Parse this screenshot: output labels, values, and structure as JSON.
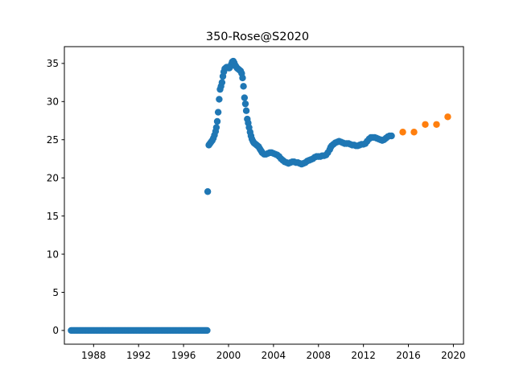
{
  "chart_data": {
    "type": "scatter",
    "title": "350-Rose@S2020",
    "xlabel": "",
    "ylabel": "",
    "xlim": [
      1985.4,
      2020.9
    ],
    "ylim": [
      -1.8,
      37.2
    ],
    "x_ticks": [
      1988,
      1992,
      1996,
      2000,
      2004,
      2008,
      2012,
      2016,
      2020
    ],
    "y_ticks": [
      0,
      5,
      10,
      15,
      20,
      25,
      30,
      35
    ],
    "grid": false,
    "legend": "none",
    "series": [
      {
        "color": "#1f77b4",
        "points": [
          [
            1986.0,
            0
          ],
          [
            1986.1,
            0
          ],
          [
            1986.2,
            0
          ],
          [
            1986.3,
            0
          ],
          [
            1986.4,
            0
          ],
          [
            1986.5,
            0
          ],
          [
            1986.6,
            0
          ],
          [
            1986.7,
            0
          ],
          [
            1986.8,
            0
          ],
          [
            1986.9,
            0
          ],
          [
            1987.0,
            0
          ],
          [
            1987.1,
            0
          ],
          [
            1987.2,
            0
          ],
          [
            1987.3,
            0
          ],
          [
            1987.4,
            0
          ],
          [
            1987.5,
            0
          ],
          [
            1987.6,
            0
          ],
          [
            1987.7,
            0
          ],
          [
            1987.8,
            0
          ],
          [
            1987.9,
            0
          ],
          [
            1988.0,
            0
          ],
          [
            1988.1,
            0
          ],
          [
            1988.2,
            0
          ],
          [
            1988.3,
            0
          ],
          [
            1988.4,
            0
          ],
          [
            1988.5,
            0
          ],
          [
            1988.6,
            0
          ],
          [
            1988.7,
            0
          ],
          [
            1988.8,
            0
          ],
          [
            1988.9,
            0
          ],
          [
            1989.0,
            0
          ],
          [
            1989.1,
            0
          ],
          [
            1989.2,
            0
          ],
          [
            1989.3,
            0
          ],
          [
            1989.4,
            0
          ],
          [
            1989.5,
            0
          ],
          [
            1989.6,
            0
          ],
          [
            1989.7,
            0
          ],
          [
            1989.8,
            0
          ],
          [
            1989.9,
            0
          ],
          [
            1990.0,
            0
          ],
          [
            1990.1,
            0
          ],
          [
            1990.2,
            0
          ],
          [
            1990.3,
            0
          ],
          [
            1990.4,
            0
          ],
          [
            1990.5,
            0
          ],
          [
            1990.6,
            0
          ],
          [
            1990.7,
            0
          ],
          [
            1990.8,
            0
          ],
          [
            1990.9,
            0
          ],
          [
            1991.0,
            0
          ],
          [
            1991.1,
            0
          ],
          [
            1991.2,
            0
          ],
          [
            1991.3,
            0
          ],
          [
            1991.4,
            0
          ],
          [
            1991.5,
            0
          ],
          [
            1991.6,
            0
          ],
          [
            1991.7,
            0
          ],
          [
            1991.8,
            0
          ],
          [
            1991.9,
            0
          ],
          [
            1992.0,
            0
          ],
          [
            1992.1,
            0
          ],
          [
            1992.2,
            0
          ],
          [
            1992.3,
            0
          ],
          [
            1992.4,
            0
          ],
          [
            1992.5,
            0
          ],
          [
            1992.6,
            0
          ],
          [
            1992.7,
            0
          ],
          [
            1992.8,
            0
          ],
          [
            1992.9,
            0
          ],
          [
            1993.0,
            0
          ],
          [
            1993.1,
            0
          ],
          [
            1993.2,
            0
          ],
          [
            1993.3,
            0
          ],
          [
            1993.4,
            0
          ],
          [
            1993.5,
            0
          ],
          [
            1993.6,
            0
          ],
          [
            1993.7,
            0
          ],
          [
            1993.8,
            0
          ],
          [
            1993.9,
            0
          ],
          [
            1994.0,
            0
          ],
          [
            1994.1,
            0
          ],
          [
            1994.2,
            0
          ],
          [
            1994.3,
            0
          ],
          [
            1994.4,
            0
          ],
          [
            1994.5,
            0
          ],
          [
            1994.6,
            0
          ],
          [
            1994.7,
            0
          ],
          [
            1994.8,
            0
          ],
          [
            1994.9,
            0
          ],
          [
            1995.0,
            0
          ],
          [
            1995.1,
            0
          ],
          [
            1995.2,
            0
          ],
          [
            1995.3,
            0
          ],
          [
            1995.4,
            0
          ],
          [
            1995.5,
            0
          ],
          [
            1995.6,
            0
          ],
          [
            1995.7,
            0
          ],
          [
            1995.8,
            0
          ],
          [
            1995.9,
            0
          ],
          [
            1996.0,
            0
          ],
          [
            1996.1,
            0
          ],
          [
            1996.2,
            0
          ],
          [
            1996.3,
            0
          ],
          [
            1996.4,
            0
          ],
          [
            1996.5,
            0
          ],
          [
            1996.6,
            0
          ],
          [
            1996.7,
            0
          ],
          [
            1996.8,
            0
          ],
          [
            1996.9,
            0
          ],
          [
            1997.0,
            0
          ],
          [
            1997.1,
            0
          ],
          [
            1997.2,
            0
          ],
          [
            1997.3,
            0
          ],
          [
            1997.4,
            0
          ],
          [
            1997.5,
            0
          ],
          [
            1997.6,
            0
          ],
          [
            1997.7,
            0
          ],
          [
            1997.8,
            0
          ],
          [
            1997.9,
            0
          ],
          [
            1998.0,
            0
          ],
          [
            1998.1,
            0
          ],
          [
            1998.15,
            18.2
          ],
          [
            1998.25,
            24.3
          ],
          [
            1998.35,
            24.5
          ],
          [
            1998.45,
            24.7
          ],
          [
            1998.55,
            24.9
          ],
          [
            1998.65,
            25.2
          ],
          [
            1998.75,
            25.6
          ],
          [
            1998.85,
            26.1
          ],
          [
            1998.92,
            26.6
          ],
          [
            1999.0,
            27.4
          ],
          [
            1999.08,
            28.6
          ],
          [
            1999.17,
            30.3
          ],
          [
            1999.25,
            31.6
          ],
          [
            1999.33,
            32.0
          ],
          [
            1999.42,
            32.5
          ],
          [
            1999.5,
            33.3
          ],
          [
            1999.58,
            33.9
          ],
          [
            1999.67,
            34.3
          ],
          [
            1999.75,
            34.4
          ],
          [
            1999.83,
            34.5
          ],
          [
            1999.92,
            34.5
          ],
          [
            2000.0,
            34.4
          ],
          [
            2000.08,
            34.4
          ],
          [
            2000.17,
            34.6
          ],
          [
            2000.25,
            34.9
          ],
          [
            2000.33,
            35.2
          ],
          [
            2000.42,
            35.3
          ],
          [
            2000.5,
            35.1
          ],
          [
            2000.58,
            34.8
          ],
          [
            2000.67,
            34.6
          ],
          [
            2000.75,
            34.4
          ],
          [
            2000.83,
            34.3
          ],
          [
            2000.92,
            34.2
          ],
          [
            2001.0,
            34.1
          ],
          [
            2001.08,
            34.0
          ],
          [
            2001.17,
            33.7
          ],
          [
            2001.25,
            33.1
          ],
          [
            2001.33,
            32.0
          ],
          [
            2001.42,
            30.5
          ],
          [
            2001.5,
            29.7
          ],
          [
            2001.58,
            28.8
          ],
          [
            2001.67,
            27.7
          ],
          [
            2001.75,
            27.2
          ],
          [
            2001.83,
            26.6
          ],
          [
            2001.92,
            26.0
          ],
          [
            2002.0,
            25.5
          ],
          [
            2002.08,
            25.1
          ],
          [
            2002.17,
            24.8
          ],
          [
            2002.25,
            24.6
          ],
          [
            2002.33,
            24.5
          ],
          [
            2002.42,
            24.4
          ],
          [
            2002.5,
            24.3
          ],
          [
            2002.58,
            24.2
          ],
          [
            2002.67,
            24.1
          ],
          [
            2002.75,
            23.9
          ],
          [
            2002.83,
            23.7
          ],
          [
            2002.92,
            23.5
          ],
          [
            2003.0,
            23.3
          ],
          [
            2003.17,
            23.1
          ],
          [
            2003.33,
            23.1
          ],
          [
            2003.5,
            23.2
          ],
          [
            2003.67,
            23.3
          ],
          [
            2003.83,
            23.3
          ],
          [
            2004.0,
            23.2
          ],
          [
            2004.17,
            23.1
          ],
          [
            2004.33,
            23.0
          ],
          [
            2004.5,
            22.8
          ],
          [
            2004.67,
            22.5
          ],
          [
            2004.83,
            22.3
          ],
          [
            2005.0,
            22.1
          ],
          [
            2005.17,
            22.0
          ],
          [
            2005.33,
            21.9
          ],
          [
            2005.5,
            22.0
          ],
          [
            2005.67,
            22.1
          ],
          [
            2005.83,
            22.1
          ],
          [
            2006.0,
            22.0
          ],
          [
            2006.17,
            22.0
          ],
          [
            2006.33,
            21.9
          ],
          [
            2006.5,
            21.8
          ],
          [
            2006.67,
            21.9
          ],
          [
            2006.83,
            22.0
          ],
          [
            2007.0,
            22.2
          ],
          [
            2007.17,
            22.3
          ],
          [
            2007.33,
            22.4
          ],
          [
            2007.5,
            22.5
          ],
          [
            2007.67,
            22.7
          ],
          [
            2007.83,
            22.8
          ],
          [
            2008.0,
            22.8
          ],
          [
            2008.17,
            22.8
          ],
          [
            2008.33,
            22.9
          ],
          [
            2008.5,
            22.9
          ],
          [
            2008.67,
            23.0
          ],
          [
            2008.83,
            23.3
          ],
          [
            2009.0,
            23.7
          ],
          [
            2009.08,
            24.0
          ],
          [
            2009.17,
            24.2
          ],
          [
            2009.33,
            24.4
          ],
          [
            2009.5,
            24.6
          ],
          [
            2009.67,
            24.7
          ],
          [
            2009.83,
            24.8
          ],
          [
            2010.0,
            24.7
          ],
          [
            2010.17,
            24.6
          ],
          [
            2010.33,
            24.5
          ],
          [
            2010.5,
            24.5
          ],
          [
            2010.67,
            24.5
          ],
          [
            2010.83,
            24.4
          ],
          [
            2011.0,
            24.3
          ],
          [
            2011.17,
            24.3
          ],
          [
            2011.33,
            24.2
          ],
          [
            2011.5,
            24.2
          ],
          [
            2011.67,
            24.3
          ],
          [
            2011.83,
            24.4
          ],
          [
            2012.0,
            24.4
          ],
          [
            2012.17,
            24.5
          ],
          [
            2012.33,
            24.8
          ],
          [
            2012.5,
            25.1
          ],
          [
            2012.67,
            25.3
          ],
          [
            2012.83,
            25.3
          ],
          [
            2013.0,
            25.3
          ],
          [
            2013.17,
            25.2
          ],
          [
            2013.33,
            25.1
          ],
          [
            2013.5,
            25.0
          ],
          [
            2013.67,
            24.9
          ],
          [
            2013.83,
            25.0
          ],
          [
            2014.0,
            25.2
          ],
          [
            2014.17,
            25.4
          ],
          [
            2014.33,
            25.5
          ],
          [
            2014.5,
            25.5
          ]
        ]
      },
      {
        "color": "#ff7f0e",
        "points": [
          [
            2015.5,
            26
          ],
          [
            2016.5,
            26
          ],
          [
            2017.5,
            27
          ],
          [
            2018.5,
            27
          ],
          [
            2019.5,
            28
          ]
        ]
      }
    ]
  }
}
